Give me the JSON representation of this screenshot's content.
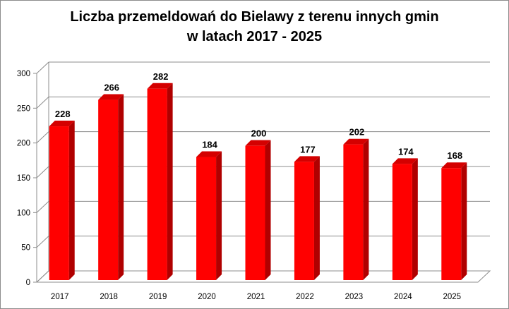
{
  "chart_data": {
    "type": "bar",
    "title": "Liczba przemeldowań do Bielawy z terenu innych gmin",
    "subtitle": "w latach 2017 - 2025",
    "categories": [
      "2017",
      "2018",
      "2019",
      "2020",
      "2021",
      "2022",
      "2023",
      "2024",
      "2025"
    ],
    "values": [
      228,
      266,
      282,
      184,
      200,
      177,
      202,
      174,
      168
    ],
    "data_labels": [
      "228",
      "266",
      "282",
      "184",
      "200",
      "177",
      "202",
      "174",
      "168"
    ],
    "y_ticks": [
      "0",
      "50",
      "100",
      "150",
      "200",
      "250",
      "300"
    ],
    "y_tick_values": [
      0,
      50,
      100,
      150,
      200,
      250,
      300
    ],
    "ylim": [
      0,
      300
    ],
    "grid": true,
    "legend": "none",
    "colors": {
      "bar_front": "#ff0000",
      "bar_side": "#b00000",
      "bar_top": "#d40000",
      "grid": "#8c8c8c",
      "wall": "#ffffff"
    }
  }
}
